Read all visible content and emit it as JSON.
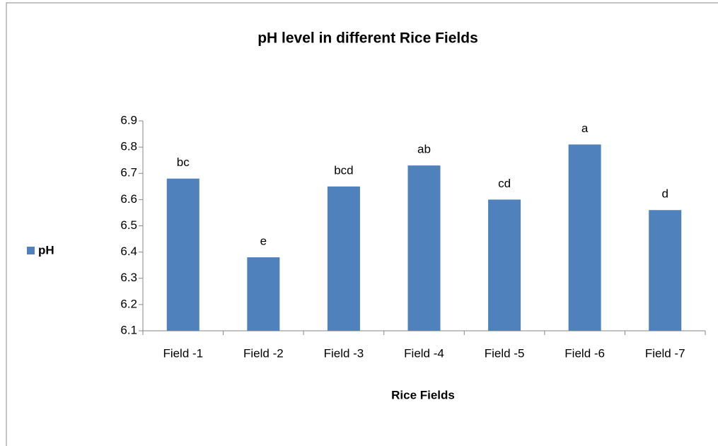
{
  "chart_data": {
    "type": "bar",
    "title": "pH level in different Rice Fields",
    "x_label": "Rice Fields",
    "categories": [
      "Field -1",
      "Field -2",
      "Field -3",
      "Field -4",
      "Field -5",
      "Field -6",
      "Field -7"
    ],
    "series": [
      {
        "name": "pH",
        "color": "#4f81bd",
        "values": [
          6.68,
          6.38,
          6.65,
          6.73,
          6.6,
          6.81,
          6.56
        ]
      }
    ],
    "annotations": [
      "bc",
      "e",
      "bcd",
      "ab",
      "cd",
      "a",
      "d"
    ],
    "ylim": [
      6.1,
      6.9
    ],
    "yticks": [
      6.1,
      6.2,
      6.3,
      6.4,
      6.5,
      6.6,
      6.7,
      6.8,
      6.9
    ],
    "legend": "left",
    "grid": false
  }
}
